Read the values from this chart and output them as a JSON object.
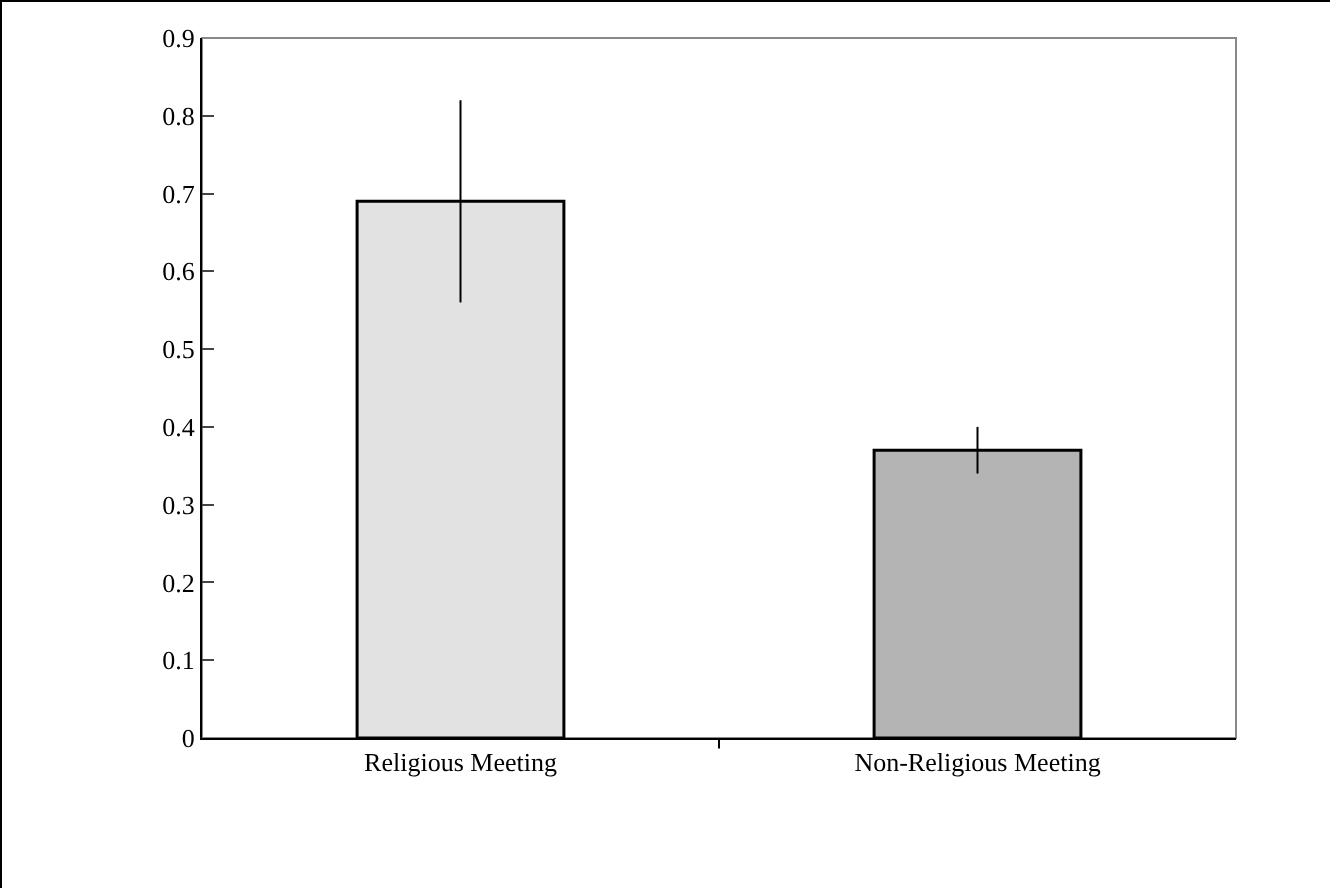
{
  "chart_data": {
    "type": "bar",
    "categories": [
      "Religious Meeting",
      "Non-Religious Meeting"
    ],
    "values": [
      0.69,
      0.37
    ],
    "colors": [
      "#e2e2e2",
      "#b4b4b4"
    ],
    "errors": [
      0.13,
      0.03
    ],
    "ylim": [
      0,
      0.9
    ],
    "yticks": [
      0,
      0.1,
      0.2,
      0.3,
      0.4,
      0.5,
      0.6,
      0.7,
      0.8,
      0.9
    ],
    "grid": false
  }
}
